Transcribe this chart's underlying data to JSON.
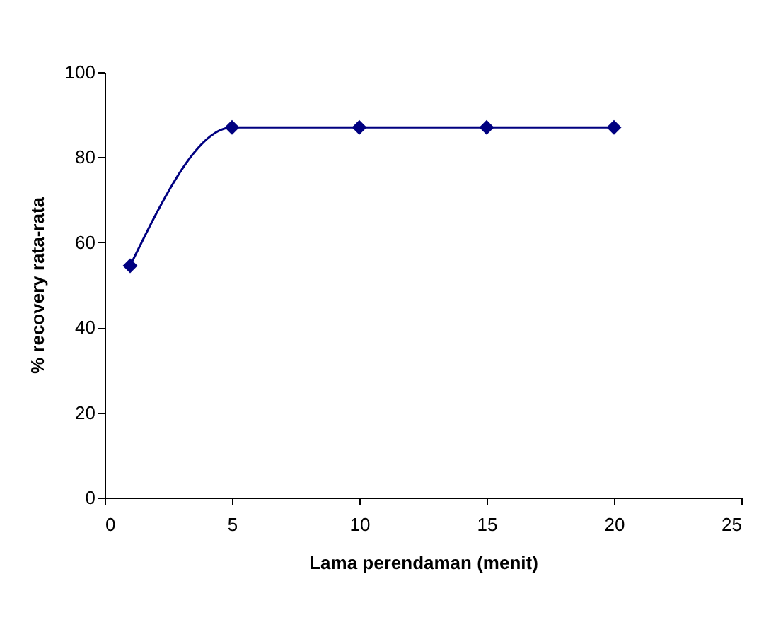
{
  "chart_data": {
    "type": "line",
    "xlabel": "Lama perendaman (menit)",
    "ylabel": "% recovery rata-rata",
    "x": [
      1,
      5,
      10,
      15,
      20
    ],
    "series": [
      {
        "color": "#000080",
        "values": [
          54.5,
          87,
          87,
          87,
          87
        ]
      }
    ],
    "xlim": [
      0,
      25
    ],
    "xticks": [
      0,
      5,
      10,
      15,
      20,
      25
    ],
    "ylim": [
      0,
      100
    ],
    "yticks": [
      0,
      20,
      40,
      60,
      80,
      100
    ],
    "grid": false,
    "marker": "diamond",
    "line_style": "solid"
  }
}
